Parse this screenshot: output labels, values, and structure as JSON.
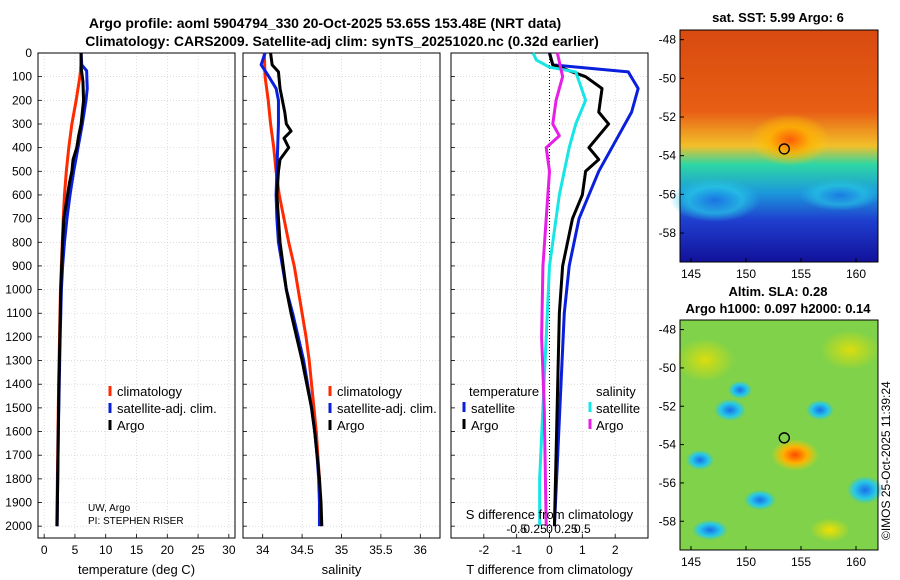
{
  "header": {
    "title_line1": "Argo profile: aoml 5904794_330 20-Oct-2025 53.65S 153.48E (NRT data)",
    "title_line2": "Climatology: CARS2009. Satellite-adj clim: synTS_20251020.nc (0.32d earlier)"
  },
  "colors": {
    "climatology": "#ff2a00",
    "satellite": "#0a1fdc",
    "argo": "#000000",
    "sst_temperature": "#16e6e6",
    "sal_diff": "#e61ee6",
    "axis": "#000000",
    "grid": "#c8c8c8"
  },
  "depth_ticks": [
    0,
    100,
    200,
    300,
    400,
    500,
    600,
    700,
    800,
    900,
    1000,
    1100,
    1200,
    1300,
    1400,
    1500,
    1600,
    1700,
    1800,
    1900,
    2000
  ],
  "chart_data": [
    {
      "id": "temperature",
      "type": "line",
      "xlabel": "temperature (deg C)",
      "ylabel": "",
      "xlim": [
        -1,
        31
      ],
      "ylim": [
        2050,
        0
      ],
      "xticks": [
        0,
        5,
        10,
        15,
        20,
        25,
        30
      ],
      "legend": [
        "climatology",
        "satellite-adj. clim.",
        "Argo"
      ],
      "annotation": [
        "UW, Argo",
        "PI: STEPHEN RISER"
      ],
      "series": [
        {
          "name": "climatology",
          "color": "#ff2a00",
          "points": [
            [
              6.0,
              0
            ],
            [
              6.0,
              50
            ],
            [
              5.8,
              100
            ],
            [
              5.2,
              200
            ],
            [
              4.5,
              300
            ],
            [
              4.0,
              400
            ],
            [
              3.6,
              500
            ],
            [
              3.3,
              600
            ],
            [
              3.1,
              700
            ],
            [
              2.95,
              800
            ],
            [
              2.8,
              900
            ],
            [
              2.65,
              1000
            ],
            [
              2.5,
              1200
            ],
            [
              2.35,
              1400
            ],
            [
              2.25,
              1600
            ],
            [
              2.15,
              1800
            ],
            [
              2.05,
              2000
            ]
          ]
        },
        {
          "name": "satellite-adj. clim.",
          "color": "#0a1fdc",
          "points": [
            [
              6.0,
              0
            ],
            [
              6.1,
              50
            ],
            [
              6.9,
              75
            ],
            [
              7.0,
              150
            ],
            [
              6.8,
              200
            ],
            [
              6.2,
              300
            ],
            [
              5.5,
              400
            ],
            [
              4.8,
              500
            ],
            [
              4.2,
              600
            ],
            [
              3.7,
              700
            ],
            [
              3.3,
              800
            ],
            [
              3.0,
              900
            ],
            [
              2.8,
              1000
            ],
            [
              2.6,
              1200
            ],
            [
              2.45,
              1400
            ],
            [
              2.3,
              1600
            ],
            [
              2.2,
              1800
            ],
            [
              2.1,
              2000
            ]
          ]
        },
        {
          "name": "Argo",
          "color": "#000000",
          "points": [
            [
              6.0,
              0
            ],
            [
              6.0,
              60
            ],
            [
              6.3,
              120
            ],
            [
              6.4,
              200
            ],
            [
              6.2,
              250
            ],
            [
              6.0,
              300
            ],
            [
              5.6,
              350
            ],
            [
              5.3,
              400
            ],
            [
              4.7,
              450
            ],
            [
              4.5,
              500
            ],
            [
              4.1,
              550
            ],
            [
              3.8,
              600
            ],
            [
              3.5,
              650
            ],
            [
              3.2,
              700
            ],
            [
              3.0,
              800
            ],
            [
              2.85,
              900
            ],
            [
              2.7,
              1000
            ],
            [
              2.55,
              1200
            ],
            [
              2.4,
              1400
            ],
            [
              2.3,
              1600
            ],
            [
              2.2,
              1800
            ],
            [
              2.1,
              2000
            ]
          ]
        }
      ]
    },
    {
      "id": "salinity",
      "type": "line",
      "xlabel": "salinity",
      "ylabel": "",
      "xlim": [
        33.75,
        36.25
      ],
      "ylim": [
        2050,
        0
      ],
      "xticks": [
        34,
        34.5,
        35,
        35.5,
        36
      ],
      "legend": [
        "climatology",
        "satellite-adj. clim.",
        "Argo"
      ],
      "series": [
        {
          "name": "climatology",
          "color": "#ff2a00",
          "points": [
            [
              34.02,
              0
            ],
            [
              34.03,
              100
            ],
            [
              34.07,
              200
            ],
            [
              34.1,
              300
            ],
            [
              34.14,
              400
            ],
            [
              34.17,
              500
            ],
            [
              34.21,
              600
            ],
            [
              34.27,
              700
            ],
            [
              34.33,
              800
            ],
            [
              34.4,
              900
            ],
            [
              34.45,
              1000
            ],
            [
              34.5,
              1100
            ],
            [
              34.55,
              1200
            ],
            [
              34.59,
              1300
            ],
            [
              34.62,
              1400
            ],
            [
              34.65,
              1500
            ],
            [
              34.68,
              1600
            ],
            [
              34.7,
              1700
            ],
            [
              34.72,
              1800
            ],
            [
              34.73,
              1900
            ],
            [
              34.74,
              2000
            ]
          ]
        },
        {
          "name": "satellite-adj. clim.",
          "color": "#0a1fdc",
          "points": [
            [
              34.03,
              0
            ],
            [
              33.98,
              50
            ],
            [
              34.06,
              90
            ],
            [
              34.17,
              150
            ],
            [
              34.2,
              200
            ],
            [
              34.2,
              300
            ],
            [
              34.19,
              400
            ],
            [
              34.18,
              500
            ],
            [
              34.17,
              600
            ],
            [
              34.18,
              700
            ],
            [
              34.2,
              800
            ],
            [
              34.25,
              900
            ],
            [
              34.3,
              1000
            ],
            [
              34.38,
              1100
            ],
            [
              34.45,
              1200
            ],
            [
              34.52,
              1300
            ],
            [
              34.57,
              1400
            ],
            [
              34.62,
              1500
            ],
            [
              34.66,
              1600
            ],
            [
              34.69,
              1700
            ],
            [
              34.71,
              1800
            ],
            [
              34.72,
              1900
            ],
            [
              34.72,
              2000
            ]
          ]
        },
        {
          "name": "Argo",
          "color": "#000000",
          "points": [
            [
              34.1,
              0
            ],
            [
              34.12,
              50
            ],
            [
              34.2,
              80
            ],
            [
              34.22,
              150
            ],
            [
              34.25,
              200
            ],
            [
              34.28,
              250
            ],
            [
              34.3,
              300
            ],
            [
              34.36,
              330
            ],
            [
              34.27,
              360
            ],
            [
              34.33,
              400
            ],
            [
              34.22,
              450
            ],
            [
              34.2,
              500
            ],
            [
              34.18,
              600
            ],
            [
              34.2,
              700
            ],
            [
              34.22,
              800
            ],
            [
              34.26,
              900
            ],
            [
              34.3,
              1000
            ],
            [
              34.36,
              1100
            ],
            [
              34.43,
              1200
            ],
            [
              34.5,
              1300
            ],
            [
              34.56,
              1400
            ],
            [
              34.62,
              1500
            ],
            [
              34.66,
              1600
            ],
            [
              34.69,
              1700
            ],
            [
              34.72,
              1800
            ],
            [
              34.74,
              1900
            ],
            [
              34.75,
              2000
            ]
          ]
        }
      ]
    },
    {
      "id": "difference",
      "type": "line",
      "xlabel": "T difference from climatology",
      "xlabel_top": "S difference from climatology",
      "xlim": [
        -3,
        3
      ],
      "ylim": [
        2050,
        0
      ],
      "xticks": [
        -2,
        -1,
        0,
        1,
        2
      ],
      "xticks_s": [
        -0.5,
        -0.25,
        0,
        0.25,
        0.5
      ],
      "legend_left_title": "temperature",
      "legend_left": [
        "satellite",
        "Argo"
      ],
      "legend_right_title": "salinity",
      "legend_right": [
        "satellite",
        "Argo"
      ],
      "series": [
        {
          "name": "temperature satellite",
          "color": "#0a1fdc",
          "points": [
            [
              0,
              0
            ],
            [
              0.1,
              50
            ],
            [
              2.4,
              80
            ],
            [
              2.7,
              150
            ],
            [
              2.5,
              250
            ],
            [
              2.1,
              350
            ],
            [
              1.5,
              500
            ],
            [
              0.9,
              700
            ],
            [
              0.6,
              900
            ],
            [
              0.45,
              1100
            ],
            [
              0.35,
              1400
            ],
            [
              0.25,
              1700
            ],
            [
              0.15,
              2000
            ]
          ]
        },
        {
          "name": "temperature Argo",
          "color": "#000000",
          "points": [
            [
              0,
              0
            ],
            [
              0.1,
              50
            ],
            [
              1.1,
              100
            ],
            [
              1.6,
              150
            ],
            [
              1.5,
              250
            ],
            [
              1.8,
              300
            ],
            [
              1.2,
              400
            ],
            [
              1.5,
              450
            ],
            [
              1.1,
              500
            ],
            [
              1.0,
              600
            ],
            [
              0.7,
              700
            ],
            [
              0.55,
              800
            ],
            [
              0.4,
              900
            ],
            [
              0.3,
              1100
            ],
            [
              0.25,
              1400
            ],
            [
              0.2,
              1700
            ],
            [
              0.15,
              2000
            ]
          ]
        },
        {
          "name": "salinity satellite",
          "color": "#16e6e6",
          "points": [
            [
              -0.25,
              0
            ],
            [
              -0.2,
              30
            ],
            [
              0.0,
              60
            ],
            [
              0.4,
              80
            ],
            [
              0.55,
              200
            ],
            [
              0.4,
              300
            ],
            [
              0.3,
              400
            ],
            [
              0.15,
              600
            ],
            [
              0.0,
              900
            ],
            [
              -0.05,
              1200
            ],
            [
              -0.1,
              1500
            ],
            [
              -0.15,
              1800
            ],
            [
              -0.15,
              2000
            ]
          ]
        },
        {
          "name": "salinity Argo",
          "color": "#e61ee6",
          "points": [
            [
              0.12,
              0
            ],
            [
              0.2,
              100
            ],
            [
              0.1,
              200
            ],
            [
              0.05,
              300
            ],
            [
              0.15,
              350
            ],
            [
              -0.05,
              400
            ],
            [
              0.0,
              500
            ],
            [
              -0.05,
              700
            ],
            [
              -0.1,
              900
            ],
            [
              -0.12,
              1200
            ],
            [
              -0.08,
              1500
            ],
            [
              -0.05,
              2000
            ]
          ]
        }
      ]
    },
    {
      "id": "sst_map",
      "type": "heatmap",
      "title": "sat. SST: 5.99 Argo: 6",
      "xticks": [
        145,
        150,
        155,
        160
      ],
      "yticks": [
        -48,
        -50,
        -52,
        -54,
        -56,
        -58
      ],
      "xlim": [
        144,
        162
      ],
      "ylim": [
        -59.5,
        -47.5
      ],
      "marker": [
        153.48,
        -53.65
      ]
    },
    {
      "id": "sla_map",
      "type": "heatmap",
      "title_line1": "Altim. SLA: 0.28",
      "title_line2": "Argo h1000: 0.097 h2000: 0.14",
      "xticks": [
        145,
        150,
        155,
        160
      ],
      "yticks": [
        -48,
        -50,
        -52,
        -54,
        -56,
        -58
      ],
      "xlim": [
        144,
        162
      ],
      "ylim": [
        -59.5,
        -47.5
      ],
      "marker": [
        153.48,
        -53.65
      ]
    }
  ],
  "watermark": "©IMOS 25-Oct-2025 11:39:24"
}
